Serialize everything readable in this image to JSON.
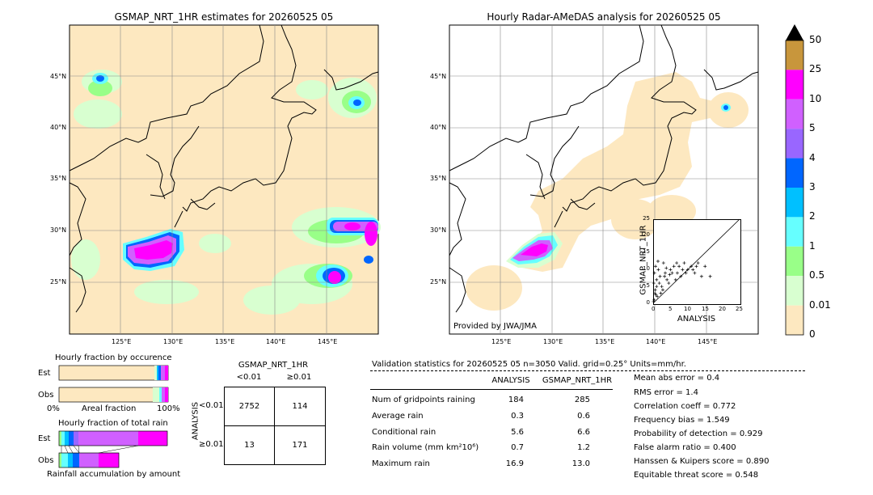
{
  "maps": {
    "left_title": "GSMAP_NRT_1HR estimates for 20260525 05",
    "right_title": "Hourly Radar-AMeDAS analysis for 20260525 05",
    "lat_labels": [
      "45°N",
      "40°N",
      "35°N",
      "30°N",
      "25°N"
    ],
    "lon_labels": [
      "125°E",
      "130°E",
      "135°E",
      "140°E",
      "145°E"
    ],
    "provided_by": "Provided by JWA/JMA"
  },
  "colorbar": {
    "ticks": [
      "50",
      "25",
      "10",
      "5",
      "4",
      "3",
      "2",
      "1",
      "0.5",
      "0.01",
      "0"
    ],
    "colors": [
      "#c8963c",
      "#ff00ff",
      "#d060ff",
      "#9966ff",
      "#0066ff",
      "#00c0ff",
      "#66ffff",
      "#99ff88",
      "#d8ffd0",
      "#fde8c0"
    ],
    "overflow_color": "#000000"
  },
  "scatter_inset": {
    "ylabel": "GSMAP_NRT_1HR",
    "xlabel": "ANALYSIS",
    "ticks": [
      "0",
      "5",
      "10",
      "15",
      "20",
      "25"
    ]
  },
  "fraction_occurrence": {
    "title": "Hourly fraction by occurence",
    "rows": [
      "Est",
      "Obs"
    ],
    "x_labels": [
      "0%",
      "Areal fraction",
      "100%"
    ]
  },
  "fraction_total": {
    "title": "Hourly fraction of total rain",
    "rows": [
      "Est",
      "Obs"
    ],
    "footer": "Rainfall accumulation by amount"
  },
  "contingency": {
    "col_title": "GSMAP_NRT_1HR",
    "col_labels": [
      "<0.01",
      "≥0.01"
    ],
    "row_title": "ANALYSIS",
    "row_labels": [
      "<0.01",
      "≥0.01"
    ],
    "cells": [
      "2752",
      "114",
      "13",
      "171"
    ]
  },
  "validation": {
    "header": "Validation statistics for 20260525 05  n=3050 Valid. grid=0.25° Units=mm/hr.",
    "col1": "ANALYSIS",
    "col2": "GSMAP_NRT_1HR",
    "rows": [
      {
        "label": "Num of gridpoints raining",
        "a": "184",
        "g": "285"
      },
      {
        "label": "Average rain",
        "a": "0.3",
        "g": "0.6"
      },
      {
        "label": "Conditional rain",
        "a": "5.6",
        "g": "6.6"
      },
      {
        "label": "Rain volume (mm km²10⁶)",
        "a": "0.7",
        "g": "1.2"
      },
      {
        "label": "Maximum rain",
        "a": "16.9",
        "g": "13.0"
      }
    ],
    "scores": [
      "Mean abs error =    0.4",
      "RMS error =    1.4",
      "Correlation coeff =  0.772",
      "Frequency bias =  1.549",
      "Probability of detection =  0.929",
      "False alarm ratio =  0.400",
      "Hanssen & Kuipers score =  0.890",
      "Equitable threat score =  0.548"
    ]
  },
  "chart_data": [
    {
      "type": "scatter",
      "name": "scatter_inset",
      "xlabel": "ANALYSIS",
      "ylabel": "GSMAP_NRT_1HR",
      "xlim": [
        0,
        25
      ],
      "ylim": [
        0,
        25
      ],
      "x": [
        0.2,
        0.4,
        0.5,
        0.7,
        1.0,
        1.2,
        1.5,
        2.0,
        2.5,
        3.0,
        3.5,
        4.0,
        5.0,
        6.0,
        7.0,
        8.0,
        9.0,
        10.0,
        11.0,
        12.0,
        13.0,
        14.0,
        15.0,
        0.3,
        0.6,
        1.0,
        1.8,
        2.2,
        3.3,
        4.5,
        5.5,
        6.5,
        7.5,
        9.5,
        11.5,
        0.1,
        0.8,
        1.4,
        2.8,
        3.8,
        4.8,
        6.8,
        8.5,
        12.5,
        16.5
      ],
      "y": [
        6.0,
        9.0,
        3.0,
        11.0,
        7.0,
        2.0,
        10.0,
        8.0,
        5.0,
        12.0,
        9.0,
        7.0,
        10.0,
        11.0,
        9.0,
        8.0,
        12.0,
        10.0,
        11.0,
        9.0,
        12.0,
        8.0,
        11.0,
        1.0,
        4.0,
        5.0,
        6.0,
        3.0,
        8.0,
        6.0,
        9.0,
        7.0,
        11.0,
        9.0,
        10.0,
        0.5,
        2.5,
        12.5,
        4.0,
        10.5,
        8.5,
        12.0,
        10.0,
        11.0,
        8.0
      ]
    }
  ]
}
